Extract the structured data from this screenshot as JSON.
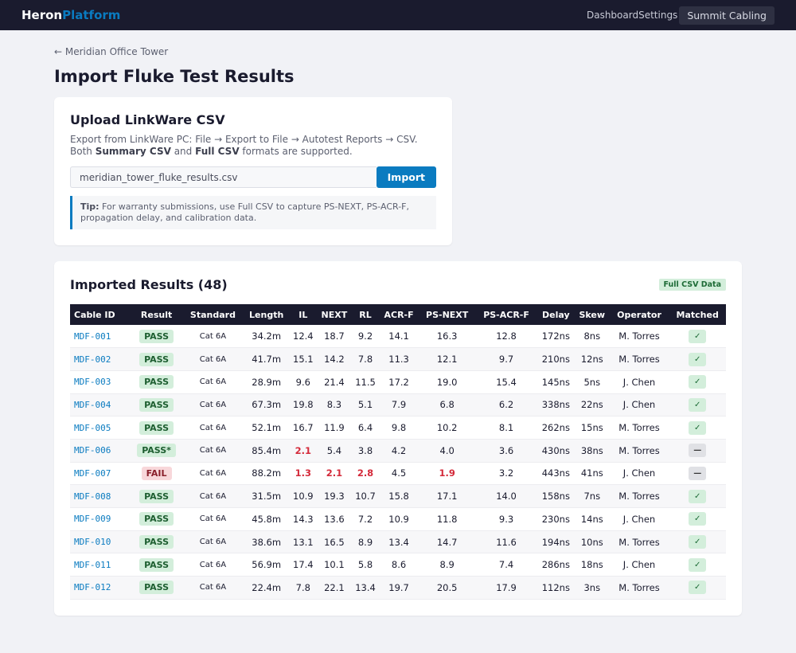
{
  "nav": {
    "brand_a": "Heron",
    "brand_b": "Platform",
    "links": [
      "Dashboard",
      "Settings"
    ],
    "org": "Summit Cabling"
  },
  "back": "← Meridian Office Tower",
  "title": "Import Fluke Test Results",
  "upload": {
    "title": "Upload LinkWare CSV",
    "desc1": "Export from LinkWare PC: File → Export to File → Autotest Reports → CSV.",
    "desc2a": "Both ",
    "desc2b": "Summary CSV",
    "desc2c": " and ",
    "desc2d": "Full CSV",
    "desc2e": " formats are supported.",
    "file": "meridian_tower_fluke_results.csv",
    "button": "Import",
    "tip_label": "Tip:",
    "tip": " For warranty submissions, use Full CSV to capture PS-NEXT, PS-ACR-F, propagation delay, and calibration data."
  },
  "results": {
    "title": "Imported Results (48)",
    "badge": "Full CSV Data",
    "columns": [
      "Cable ID",
      "Result",
      "Standard",
      "Length",
      "IL",
      "NEXT",
      "RL",
      "ACR-F",
      "PS-NEXT",
      "PS-ACR-F",
      "Delay",
      "Skew",
      "Operator",
      "Matched"
    ],
    "rows": [
      {
        "c": [
          "MDF-001",
          "PASS",
          "Cat 6A",
          "34.2m",
          "12.4",
          "18.7",
          "9.2",
          "14.1",
          "16.3",
          "12.8",
          "172ns",
          "8ns",
          "M. Torres",
          "✓"
        ],
        "status": "pass",
        "red": []
      },
      {
        "c": [
          "MDF-002",
          "PASS",
          "Cat 6A",
          "41.7m",
          "15.1",
          "14.2",
          "7.8",
          "11.3",
          "12.1",
          "9.7",
          "210ns",
          "12ns",
          "M. Torres",
          "✓"
        ],
        "status": "pass",
        "red": []
      },
      {
        "c": [
          "MDF-003",
          "PASS",
          "Cat 6A",
          "28.9m",
          "9.6",
          "21.4",
          "11.5",
          "17.2",
          "19.0",
          "15.4",
          "145ns",
          "5ns",
          "J. Chen",
          "✓"
        ],
        "status": "pass",
        "red": []
      },
      {
        "c": [
          "MDF-004",
          "PASS",
          "Cat 6A",
          "67.3m",
          "19.8",
          "8.3",
          "5.1",
          "7.9",
          "6.8",
          "6.2",
          "338ns",
          "22ns",
          "J. Chen",
          "✓"
        ],
        "status": "pass",
        "red": []
      },
      {
        "c": [
          "MDF-005",
          "PASS",
          "Cat 6A",
          "52.1m",
          "16.7",
          "11.9",
          "6.4",
          "9.8",
          "10.2",
          "8.1",
          "262ns",
          "15ns",
          "M. Torres",
          "✓"
        ],
        "status": "pass",
        "red": []
      },
      {
        "c": [
          "MDF-006",
          "PASS*",
          "Cat 6A",
          "85.4m",
          "2.1",
          "5.4",
          "3.8",
          "4.2",
          "4.0",
          "3.6",
          "430ns",
          "38ns",
          "M. Torres",
          "—"
        ],
        "status": "pass",
        "red": [
          4
        ]
      },
      {
        "c": [
          "MDF-007",
          "FAIL",
          "Cat 6A",
          "88.2m",
          "1.3",
          "2.1",
          "2.8",
          "4.5",
          "1.9",
          "3.2",
          "443ns",
          "41ns",
          "J. Chen",
          "—"
        ],
        "status": "fail",
        "red": [
          4,
          5,
          6,
          8
        ]
      },
      {
        "c": [
          "MDF-008",
          "PASS",
          "Cat 6A",
          "31.5m",
          "10.9",
          "19.3",
          "10.7",
          "15.8",
          "17.1",
          "14.0",
          "158ns",
          "7ns",
          "M. Torres",
          "✓"
        ],
        "status": "pass",
        "red": []
      },
      {
        "c": [
          "MDF-009",
          "PASS",
          "Cat 6A",
          "45.8m",
          "14.3",
          "13.6",
          "7.2",
          "10.9",
          "11.8",
          "9.3",
          "230ns",
          "14ns",
          "J. Chen",
          "✓"
        ],
        "status": "pass",
        "red": []
      },
      {
        "c": [
          "MDF-010",
          "PASS",
          "Cat 6A",
          "38.6m",
          "13.1",
          "16.5",
          "8.9",
          "13.4",
          "14.7",
          "11.6",
          "194ns",
          "10ns",
          "M. Torres",
          "✓"
        ],
        "status": "pass",
        "red": []
      },
      {
        "c": [
          "MDF-011",
          "PASS",
          "Cat 6A",
          "56.9m",
          "17.4",
          "10.1",
          "5.8",
          "8.6",
          "8.9",
          "7.4",
          "286ns",
          "18ns",
          "J. Chen",
          "✓"
        ],
        "status": "pass",
        "red": []
      },
      {
        "c": [
          "MDF-012",
          "PASS",
          "Cat 6A",
          "22.4m",
          "7.8",
          "22.1",
          "13.4",
          "19.7",
          "20.5",
          "17.9",
          "112ns",
          "3ns",
          "M. Torres",
          "✓"
        ],
        "status": "pass",
        "red": []
      }
    ]
  }
}
